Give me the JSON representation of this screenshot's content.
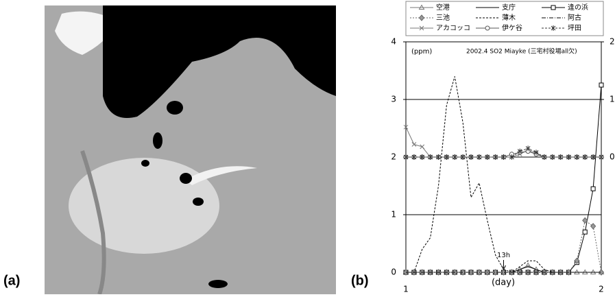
{
  "panel_a": {
    "label": "(a)"
  },
  "chart_data": {
    "type": "line",
    "label": "(b)",
    "title": "2002.4 SO2 Miayke (三宅村役場all欠)",
    "y_unit": "(ppm)",
    "x_label": "(day)",
    "annotation": "13h",
    "annotation_x": 1.5,
    "xlim": [
      1,
      2
    ],
    "xticks": [
      1,
      2
    ],
    "ylim": [
      0,
      4
    ],
    "yticks": [
      0,
      1,
      2,
      3,
      4
    ],
    "y2lim": [
      -2,
      2
    ],
    "y2ticks": [
      0,
      1,
      2
    ],
    "grid": true,
    "x": [
      1,
      1.0417,
      1.0833,
      1.125,
      1.1667,
      1.2083,
      1.25,
      1.2917,
      1.3333,
      1.375,
      1.4167,
      1.4583,
      1.5,
      1.5417,
      1.5833,
      1.625,
      1.6667,
      1.7083,
      1.75,
      1.7917,
      1.8333,
      1.875,
      1.9167,
      1.9583,
      2
    ],
    "series": [
      {
        "name": "空港",
        "color": "#777777",
        "marker": "triangle",
        "dash": "none",
        "values": [
          0,
          0,
          0,
          0,
          0,
          0,
          0,
          0,
          0,
          0,
          0,
          0,
          0,
          0,
          0.05,
          0.12,
          0.05,
          0,
          0,
          0,
          0,
          0,
          0,
          0,
          0
        ]
      },
      {
        "name": "支庁",
        "color": "#000000",
        "marker": "none",
        "dash": "none",
        "values": [
          0,
          0,
          0,
          0,
          0,
          0,
          0,
          0,
          0,
          0,
          0,
          0,
          0,
          0,
          0.05,
          0.1,
          0.05,
          0,
          0,
          0,
          0,
          0,
          0,
          0,
          0
        ]
      },
      {
        "name": "逢の浜",
        "color": "#000000",
        "marker": "square",
        "dash": "none",
        "values": [
          0,
          0,
          0,
          0,
          0,
          0,
          0,
          0,
          0,
          0,
          0,
          0,
          0,
          0,
          0,
          0,
          0,
          0,
          0,
          0,
          0,
          0.17,
          0.7,
          1.45,
          3.25
        ]
      },
      {
        "name": "三池",
        "color": "#666666",
        "marker": "diamond",
        "dash": "2,2",
        "values": [
          0,
          0,
          0,
          0,
          0,
          0,
          0,
          0,
          0,
          0,
          0,
          0,
          0,
          0,
          0,
          0,
          0,
          0,
          0,
          0,
          0,
          0.2,
          0.9,
          0.8,
          0
        ]
      },
      {
        "name": "薄木",
        "color": "#000000",
        "marker": "none",
        "dash": "3,2",
        "values": [
          0,
          0,
          0.4,
          0.6,
          1.5,
          2.9,
          3.4,
          2.6,
          1.3,
          1.55,
          0.9,
          0.3,
          0.05,
          0,
          0.1,
          0.2,
          0.2,
          0.05,
          0,
          0,
          0,
          0,
          0,
          0,
          0
        ]
      },
      {
        "name": "阿古",
        "color": "#000000",
        "marker": "none",
        "dash": "6,2,1,2",
        "values": [
          0,
          0,
          0,
          0,
          0,
          0,
          0,
          0,
          0,
          0,
          0,
          0,
          0,
          0,
          0,
          0,
          0,
          0,
          0,
          0,
          0,
          0,
          0,
          0,
          0
        ]
      },
      {
        "name": "アカコッコ",
        "color": "#777777",
        "marker": "x",
        "dash": "none",
        "axis": "y2",
        "values": [
          0.52,
          0.22,
          0.18,
          0,
          0,
          0,
          0,
          0,
          0,
          0,
          0,
          0,
          0,
          0,
          0.05,
          0.12,
          0.06,
          0,
          0,
          0,
          0,
          0,
          0,
          0,
          0
        ]
      },
      {
        "name": "伊ケ谷",
        "color": "#555555",
        "marker": "circle",
        "dash": "none",
        "axis": "y2",
        "values": [
          0,
          0,
          0,
          0,
          0,
          0,
          0,
          0,
          0,
          0,
          0,
          0,
          0,
          0.05,
          0.08,
          0.1,
          0.05,
          0,
          0,
          0,
          0,
          0,
          0,
          0,
          0
        ]
      },
      {
        "name": "坪田",
        "color": "#333333",
        "marker": "asterisk",
        "dash": "3,2",
        "axis": "y2",
        "values": [
          0,
          0,
          0,
          0,
          0,
          0,
          0,
          0,
          0,
          0,
          0,
          0,
          0,
          0,
          0.1,
          0.15,
          0.08,
          0,
          0,
          0,
          0,
          0,
          0,
          0,
          0
        ]
      }
    ]
  }
}
